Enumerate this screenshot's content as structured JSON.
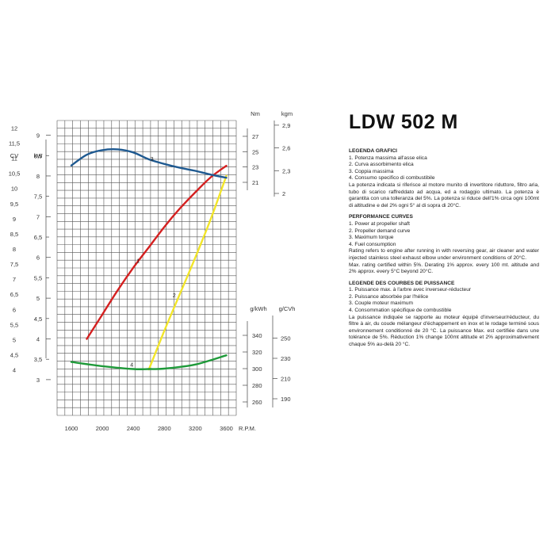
{
  "page": {
    "model_title": "LDW 502 M"
  },
  "colors": {
    "curve1": "#d42020",
    "curve2": "#f2e52a",
    "curve3": "#1f5a91",
    "curve4": "#1f9a3a",
    "grid": "#555555"
  },
  "chart_data": {
    "type": "line",
    "title": "",
    "x_axis": {
      "label": "R.P.M.",
      "ticks": [
        1600,
        2000,
        2400,
        2800,
        3200,
        3600
      ],
      "range": [
        1400,
        3800
      ]
    },
    "power_axes": {
      "cv": {
        "label": "CV",
        "range": [
          2.6,
          12.3
        ],
        "ticks": [
          "12",
          "11,5",
          "11",
          "10,5",
          "10",
          "9,5",
          "9",
          "8,5",
          "8",
          "7,5",
          "7",
          "6,5",
          "6",
          "5,5",
          "5",
          "4,5",
          "4"
        ]
      },
      "kw": {
        "label": "kW",
        "range": [
          2.2,
          9.4
        ],
        "ticks": [
          "9",
          "8",
          "7",
          "6",
          "5",
          "4",
          "3"
        ],
        "minor_ticks": [
          "8,5",
          "7,5",
          "6,5",
          "5,5",
          "4,5",
          "3,5"
        ]
      }
    },
    "torque_axes": {
      "nm": {
        "label": "Nm",
        "range": [
          19.8,
          27.4
        ],
        "ticks": [
          "27",
          "25",
          "23",
          "21"
        ]
      },
      "kgm": {
        "label": "kgm",
        "range": [
          2.0,
          2.9
        ],
        "ticks": [
          "2,9",
          "2,6",
          "2,3",
          "2"
        ]
      }
    },
    "consumption_axes": {
      "gkwh": {
        "label": "g/kWh",
        "range": [
          250,
          352
        ],
        "ticks": [
          "340",
          "320",
          "300",
          "280",
          "260"
        ]
      },
      "gcvh": {
        "label": "g/CVh",
        "range": [
          184,
          259
        ],
        "ticks": [
          "250",
          "230",
          "210",
          "190"
        ]
      }
    },
    "series": [
      {
        "id": "1",
        "axis": "kw",
        "color_key": "curve1",
        "x": [
          1800,
          2000,
          2200,
          2400,
          2600,
          2800,
          3000,
          3200,
          3400,
          3600
        ],
        "y": [
          4.0,
          4.6,
          5.2,
          5.75,
          6.25,
          6.75,
          7.2,
          7.6,
          7.97,
          8.25
        ]
      },
      {
        "id": "2",
        "axis": "kw",
        "color_key": "curve2",
        "x": [
          2600,
          2800,
          3000,
          3200,
          3400,
          3600
        ],
        "y": [
          3.25,
          4.2,
          5.1,
          6.0,
          6.95,
          8.0
        ]
      },
      {
        "id": "3",
        "axis": "nm",
        "color_key": "curve3",
        "x": [
          1600,
          1800,
          2000,
          2200,
          2400,
          2600,
          2800,
          3000,
          3200,
          3400,
          3600
        ],
        "y": [
          23.2,
          24.6,
          25.2,
          25.3,
          24.9,
          24.0,
          23.4,
          22.9,
          22.5,
          22.0,
          21.6
        ]
      },
      {
        "id": "4",
        "axis": "gkwh",
        "color_key": "curve4",
        "x": [
          1600,
          2000,
          2400,
          2600,
          2800,
          3200,
          3600
        ],
        "y": [
          308,
          303,
          299.5,
          299.5,
          300,
          305,
          316
        ]
      }
    ]
  },
  "legend_it": {
    "heading": "LEGENDA GRAFICI",
    "items": [
      "1. Potenza massima all'asse elica",
      "2. Curva assorbimento elica",
      "3. Coppia massima",
      "4. Consumo specifico di combustibile"
    ],
    "note": "La potenza indicata si riferisce al motore munito di invertitore riduttore, filtro aria, tubo di scarico raffreddato ad acqua, ed a rodaggio ultimato. La potenza è garantita con una tolleranza del 5%. La potenza si riduce dell'1% circa ogni 100mt di altitudine e del 2% ogni 5° al di sopra di 20°C."
  },
  "legend_en": {
    "heading": "PERFORMANCE CURVES",
    "items": [
      "1. Power at propeller shaft",
      "2. Propeller demand curve",
      "3. Maximum torque",
      "4. Fuel consumption"
    ],
    "note": "Rating refers to engine after running in with reversing gear, air cleaner and water injected stainless steel exhaust elbow under environment conditions of 20°C.",
    "note2": "Max. rating certified within 5%. Derating 1% approx. every 100 mt. altitude and 2% approx. every 5°C beyond 20°C."
  },
  "legend_fr": {
    "heading": "LEGENDE DES COURBES DE PUISSANCE",
    "items": [
      "1. Puissance max. à l'arbre avec inverseur-réducteur",
      "2. Puissance absorbée par l'hélice",
      "3. Couple moteur maximum",
      "4. Consommation spécifique de combustible"
    ],
    "note": "La puissance indiquée se rapporte au moteur équipé d'inverseur/réducteur, du filtre à air, du coude mélangeur d'échappement en inox et le rodage terminé sous environnement conditionné de 20 °C. La puissance Max. est certifiée dans une tolérance de 5%. Réduction 1% change 100mt altitude et 2% approximativement chaque 5% au-delà 20 °C."
  }
}
